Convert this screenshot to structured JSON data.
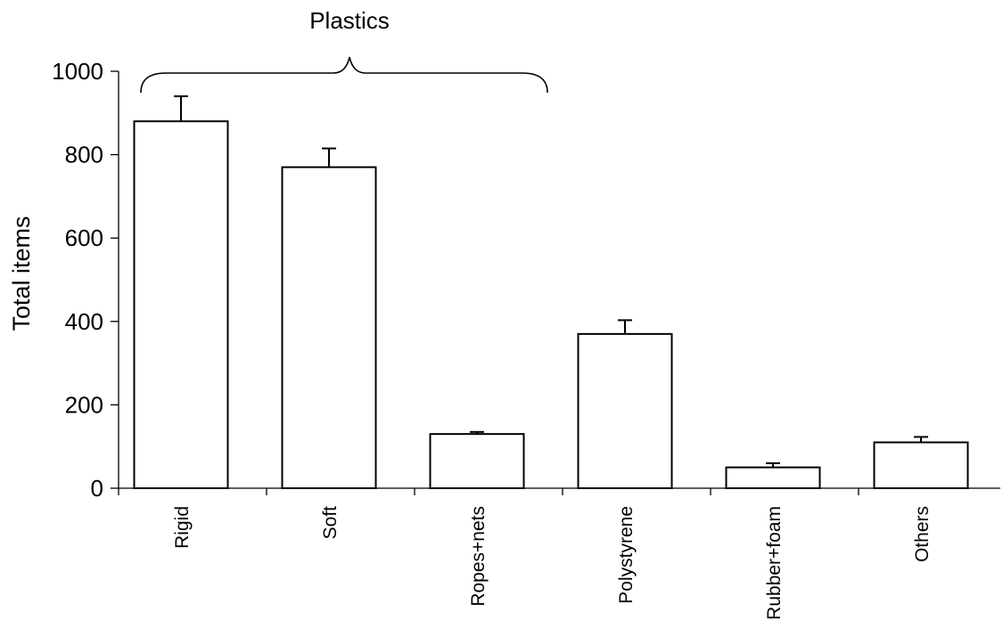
{
  "chart_data": {
    "type": "bar",
    "categories": [
      "Rigid",
      "Soft",
      "Ropes+nets",
      "Polystyrene",
      "Rubber+foam",
      "Others"
    ],
    "values": [
      880,
      770,
      130,
      370,
      50,
      110
    ],
    "error_upper": [
      940,
      815,
      135,
      403,
      60,
      123
    ],
    "xlabel": "",
    "ylabel": "Total items",
    "ylim": [
      0,
      1000
    ],
    "yticks": [
      0,
      200,
      400,
      600,
      800,
      1000
    ],
    "bar_fill": "#ffffff",
    "bar_stroke": "#000000",
    "annotation": {
      "text": "Plastics",
      "spans_categories": [
        "Rigid",
        "Soft",
        "Ropes+nets"
      ]
    }
  }
}
